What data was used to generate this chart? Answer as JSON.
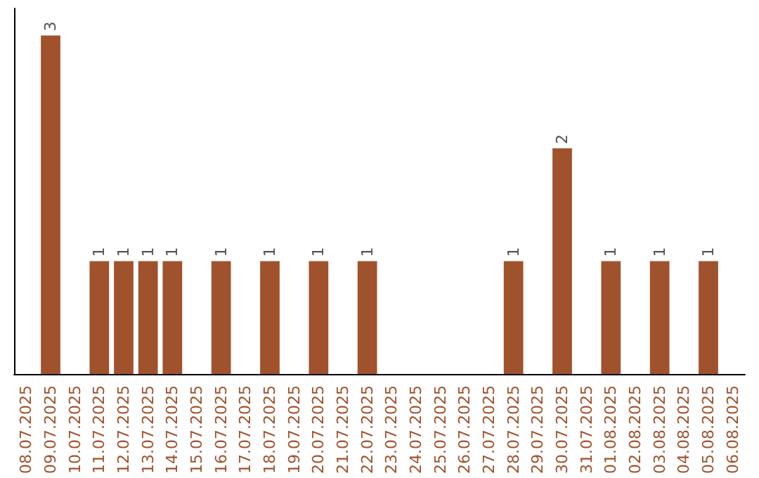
{
  "chart_data": {
    "type": "bar",
    "categories": [
      "08.07.2025",
      "09.07.2025",
      "10.07.2025",
      "11.07.2025",
      "12.07.2025",
      "13.07.2025",
      "14.07.2025",
      "15.07.2025",
      "16.07.2025",
      "17.07.2025",
      "18.07.2025",
      "19.07.2025",
      "20.07.2025",
      "21.07.2025",
      "22.07.2025",
      "23.07.2025",
      "24.07.2025",
      "25.07.2025",
      "26.07.2025",
      "27.07.2025",
      "28.07.2025",
      "29.07.2025",
      "30.07.2025",
      "31.07.2025",
      "01.08.2025",
      "02.08.2025",
      "03.08.2025",
      "04.08.2025",
      "05.08.2025",
      "06.08.2025"
    ],
    "values": [
      0,
      3,
      0,
      1,
      1,
      1,
      1,
      0,
      1,
      0,
      1,
      0,
      1,
      0,
      1,
      0,
      0,
      0,
      0,
      0,
      1,
      0,
      2,
      0,
      1,
      0,
      1,
      0,
      1,
      0
    ],
    "value_labels": [
      null,
      "3",
      null,
      "1",
      "1",
      "1",
      "1",
      null,
      "1",
      null,
      "1",
      null,
      "1",
      null,
      "1",
      null,
      null,
      null,
      null,
      null,
      "1",
      null,
      "2",
      null,
      "1",
      null,
      "1",
      null,
      "1",
      null
    ],
    "color": "#a0522d",
    "tick_labels": "x"
  }
}
